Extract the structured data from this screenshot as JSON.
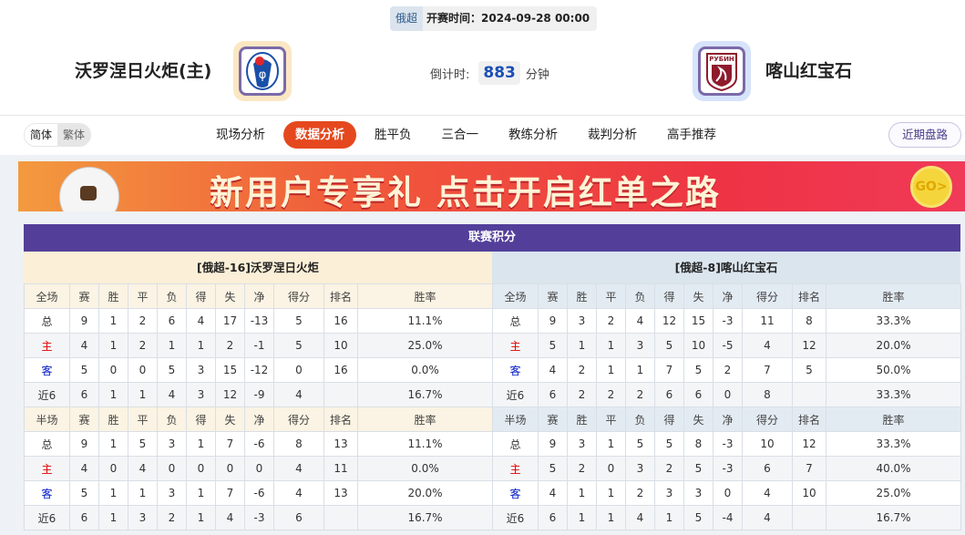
{
  "header": {
    "league": "俄超",
    "kickoff": "开赛时间：2024-09-28 00:00",
    "home_team": "沃罗涅日火炬(主)",
    "away_team": "喀山红宝石",
    "countdown_label": "倒计时:",
    "countdown_value": "883",
    "countdown_unit": "分钟",
    "home_logo_icon": "fakel-crest",
    "away_logo_icon": "rubin-crest",
    "away_logo_text": "РУБИН"
  },
  "nav": {
    "lang_simplified": "简体",
    "lang_traditional": "繁体",
    "tabs": [
      "现场分析",
      "数据分析",
      "胜平负",
      "三合一",
      "教练分析",
      "裁判分析",
      "高手推荐"
    ],
    "active_tab": "数据分析",
    "recent_button": "近期盘路"
  },
  "banner": {
    "text": "新用户专享礼  点击开启红单之路",
    "go": "GO>"
  },
  "colors": {
    "title_bar": "#533f9a",
    "active_tab": "#e5481e",
    "home_label": "#e10000",
    "away_label": "#0018c8"
  },
  "standings": {
    "title": "联赛积分",
    "columns_full": [
      "全场",
      "赛",
      "胜",
      "平",
      "负",
      "得",
      "失",
      "净",
      "得分",
      "排名",
      "胜率"
    ],
    "columns_half": [
      "半场",
      "赛",
      "胜",
      "平",
      "负",
      "得",
      "失",
      "净",
      "得分",
      "排名",
      "胜率"
    ],
    "home": {
      "header": "[俄超-16]沃罗涅日火炬",
      "full": [
        [
          "总",
          "9",
          "1",
          "2",
          "6",
          "4",
          "17",
          "-13",
          "5",
          "16",
          "11.1%"
        ],
        [
          "主",
          "4",
          "1",
          "2",
          "1",
          "1",
          "2",
          "-1",
          "5",
          "10",
          "25.0%"
        ],
        [
          "客",
          "5",
          "0",
          "0",
          "5",
          "3",
          "15",
          "-12",
          "0",
          "16",
          "0.0%"
        ],
        [
          "近6",
          "6",
          "1",
          "1",
          "4",
          "3",
          "12",
          "-9",
          "4",
          "",
          "16.7%"
        ]
      ],
      "half": [
        [
          "总",
          "9",
          "1",
          "5",
          "3",
          "1",
          "7",
          "-6",
          "8",
          "13",
          "11.1%"
        ],
        [
          "主",
          "4",
          "0",
          "4",
          "0",
          "0",
          "0",
          "0",
          "4",
          "11",
          "0.0%"
        ],
        [
          "客",
          "5",
          "1",
          "1",
          "3",
          "1",
          "7",
          "-6",
          "4",
          "13",
          "20.0%"
        ],
        [
          "近6",
          "6",
          "1",
          "3",
          "2",
          "1",
          "4",
          "-3",
          "6",
          "",
          "16.7%"
        ]
      ]
    },
    "away": {
      "header": "[俄超-8]喀山红宝石",
      "full": [
        [
          "总",
          "9",
          "3",
          "2",
          "4",
          "12",
          "15",
          "-3",
          "11",
          "8",
          "33.3%"
        ],
        [
          "主",
          "5",
          "1",
          "1",
          "3",
          "5",
          "10",
          "-5",
          "4",
          "12",
          "20.0%"
        ],
        [
          "客",
          "4",
          "2",
          "1",
          "1",
          "7",
          "5",
          "2",
          "7",
          "5",
          "50.0%"
        ],
        [
          "近6",
          "6",
          "2",
          "2",
          "2",
          "6",
          "6",
          "0",
          "8",
          "",
          "33.3%"
        ]
      ],
      "half": [
        [
          "总",
          "9",
          "3",
          "1",
          "5",
          "5",
          "8",
          "-3",
          "10",
          "12",
          "33.3%"
        ],
        [
          "主",
          "5",
          "2",
          "0",
          "3",
          "2",
          "5",
          "-3",
          "6",
          "7",
          "40.0%"
        ],
        [
          "客",
          "4",
          "1",
          "1",
          "2",
          "3",
          "3",
          "0",
          "4",
          "10",
          "25.0%"
        ],
        [
          "近6",
          "6",
          "1",
          "1",
          "4",
          "1",
          "5",
          "-4",
          "4",
          "",
          "16.7%"
        ]
      ]
    }
  }
}
